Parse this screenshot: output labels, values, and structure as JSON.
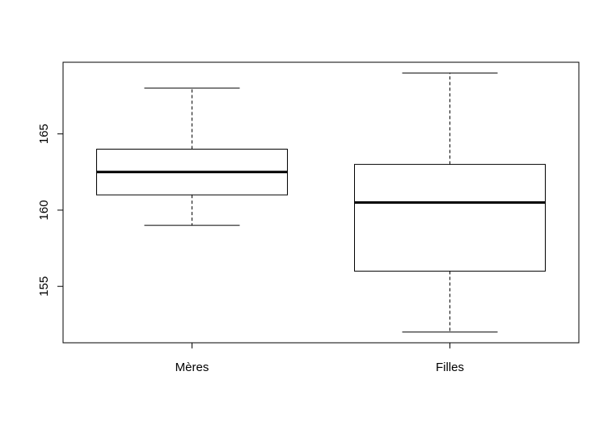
{
  "chart_data": {
    "type": "boxplot",
    "title": "",
    "xlabel": "",
    "ylabel": "",
    "categories": [
      "Mères",
      "Filles"
    ],
    "boxes": [
      {
        "category": "Mères",
        "min": 159,
        "q1": 161,
        "median": 162.5,
        "q3": 164,
        "max": 168
      },
      {
        "category": "Filles",
        "min": 152,
        "q1": 156,
        "median": 160.5,
        "q3": 163,
        "max": 169
      }
    ],
    "ylim": [
      151.3,
      169.7
    ],
    "yticks": [
      155,
      160,
      165
    ],
    "ytick_labels": [
      "155",
      "160",
      "165"
    ],
    "grid": false,
    "legend": "none",
    "colors": {
      "box_fill": "#ffffff",
      "stroke": "#000000"
    }
  }
}
